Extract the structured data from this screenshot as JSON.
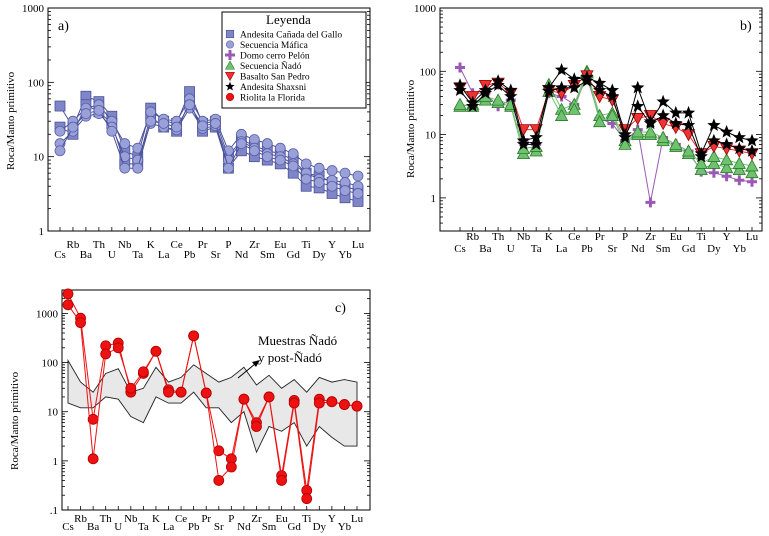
{
  "figure": {
    "ylabel": "Roca/Manto primitivo"
  },
  "legend": {
    "title": "Leyenda",
    "entries": [
      {
        "name": "Andesita Cañada del Gallo",
        "marker": "square",
        "color": "#7f86c8"
      },
      {
        "name": "Secuencia Máfica",
        "marker": "circle",
        "color": "#9aa0d8"
      },
      {
        "name": "Domo cerro Pelón",
        "marker": "plus",
        "color": "#9b59b6"
      },
      {
        "name": "Secuencia Ñadó",
        "marker": "triangle-up",
        "color": "#6fc36f"
      },
      {
        "name": "Basalto San Pedro",
        "marker": "triangle-down",
        "color": "#ee3333"
      },
      {
        "name": "Andesita Shaxsni",
        "marker": "star",
        "color": "#000000"
      },
      {
        "name": "Riolita la Florida",
        "marker": "circle",
        "color": "#ee1111"
      }
    ]
  },
  "chart_data": [
    {
      "panel": "a)",
      "type": "line",
      "yscale": "log",
      "ylim": [
        1,
        1000
      ],
      "yticks": [
        "1",
        "10",
        "100",
        "1000"
      ],
      "ylabel": "Roca/Manto primitivo",
      "categories": [
        "Cs",
        "Rb",
        "Ba",
        "Th",
        "U",
        "Nb",
        "Ta",
        "K",
        "La",
        "Ce",
        "Pb",
        "Pr",
        "Sr",
        "P",
        "Nd",
        "Zr",
        "Sm",
        "Eu",
        "Gd",
        "Ti",
        "Dy",
        "Y",
        "Yb",
        "Lu"
      ],
      "series": [
        {
          "name": "Andesita Cañada del Gallo",
          "marker": "square",
          "color": "#7f86c8",
          "values": [
            48,
            25,
            65,
            55,
            35,
            12,
            10,
            45,
            30,
            28,
            75,
            28,
            30,
            10,
            17,
            14,
            12,
            11,
            9,
            6,
            5.5,
            4.5,
            4,
            3.5
          ]
        },
        {
          "name": "Andesita Cañada del Gallo",
          "marker": "square",
          "color": "#7f86c8",
          "values": [
            25,
            20,
            50,
            40,
            28,
            8,
            8,
            35,
            25,
            22,
            55,
            22,
            25,
            7,
            12,
            10,
            9,
            8,
            6,
            4,
            3.8,
            3.2,
            2.8,
            2.5
          ]
        },
        {
          "name": "Secuencia Máfica",
          "marker": "circle",
          "color": "#9aa0d8",
          "values": [
            22,
            30,
            45,
            50,
            30,
            15,
            13,
            40,
            32,
            30,
            60,
            30,
            32,
            12,
            20,
            17,
            15,
            13,
            11,
            8,
            7,
            6.5,
            6,
            5.5
          ]
        },
        {
          "name": "Secuencia Máfica",
          "marker": "circle",
          "color": "#9aa0d8",
          "values": [
            15,
            22,
            35,
            38,
            25,
            10,
            9,
            28,
            25,
            23,
            45,
            24,
            26,
            9,
            16,
            13,
            11,
            10,
            8,
            6,
            5,
            4.8,
            4.5,
            4
          ]
        },
        {
          "name": "Secuencia Máfica",
          "marker": "circle",
          "color": "#9aa0d8",
          "values": [
            12,
            25,
            38,
            42,
            22,
            7,
            7,
            30,
            28,
            25,
            50,
            26,
            28,
            7,
            15,
            12,
            10,
            9,
            7.5,
            5,
            4.5,
            4,
            3.5,
            3.2
          ]
        }
      ]
    },
    {
      "panel": "b)",
      "type": "line",
      "yscale": "log",
      "ylim": [
        0.3,
        1000
      ],
      "yticks": [
        "1",
        "10",
        "100",
        "1000"
      ],
      "ylabel": "Roca/Manto primitivo",
      "categories": [
        "Cs",
        "Rb",
        "Ba",
        "Th",
        "U",
        "Nb",
        "Ta",
        "K",
        "La",
        "Ce",
        "Pb",
        "Pr",
        "Sr",
        "P",
        "Nd",
        "Zr",
        "Sm",
        "Eu",
        "Gd",
        "Ti",
        "Dy",
        "Y",
        "Yb",
        "Lu"
      ],
      "series": [
        {
          "name": "Domo cerro Pelón",
          "marker": "plus",
          "color": "#9b59b6",
          "values": [
            115,
            45,
            45,
            28,
            35,
            8,
            7,
            45,
            40,
            30,
            80,
            18,
            15,
            8,
            12,
            0.85,
            9,
            7,
            5.5,
            2.6,
            2.5,
            2.2,
            1.9,
            1.8
          ]
        },
        {
          "name": "Secuencia Ñadó",
          "marker": "triangle-up",
          "color": "#6fc36f",
          "values": [
            28,
            30,
            35,
            32,
            28,
            5,
            5.5,
            62,
            25,
            30,
            100,
            20,
            22,
            8,
            10,
            10,
            8,
            6.5,
            5,
            2.8,
            3.5,
            3,
            2.8,
            2.5
          ]
        },
        {
          "name": "Secuencia Ñadó",
          "marker": "triangle-up",
          "color": "#6fc36f",
          "values": [
            30,
            28,
            40,
            35,
            30,
            6,
            6.5,
            48,
            20,
            25,
            95,
            16,
            20,
            7,
            11,
            11,
            9,
            7,
            5.5,
            3.5,
            4.5,
            4,
            3.5,
            3.2
          ]
        },
        {
          "name": "Basalto San Pedro",
          "marker": "triangle-down",
          "color": "#ee3333",
          "values": [
            55,
            40,
            60,
            65,
            45,
            12,
            12,
            50,
            45,
            60,
            85,
            40,
            35,
            12,
            18,
            20,
            15,
            13,
            10,
            5,
            6.5,
            6,
            5.5,
            5
          ]
        },
        {
          "name": "Andesita Shaxsni",
          "marker": "star",
          "color": "#000000",
          "values": [
            60,
            32,
            50,
            70,
            50,
            8,
            9,
            55,
            105,
            75,
            80,
            65,
            50,
            10,
            55,
            16,
            33,
            22,
            22,
            5,
            14,
            11,
            9,
            8
          ]
        },
        {
          "name": "Andesita Shaxsni",
          "marker": "star",
          "color": "#000000",
          "values": [
            50,
            28,
            45,
            60,
            40,
            7,
            7,
            48,
            55,
            55,
            70,
            50,
            40,
            9,
            28,
            15,
            20,
            15,
            14,
            4.5,
            8,
            7,
            6,
            5.5
          ]
        }
      ]
    },
    {
      "panel": "c)",
      "type": "line",
      "yscale": "log",
      "ylim": [
        0.1,
        3000
      ],
      "yticks": [
        ".1",
        "1",
        "10",
        "100",
        "1000"
      ],
      "ylabel": "Roca/Manto primitivo",
      "categories": [
        "Cs",
        "Rb",
        "Ba",
        "Th",
        "U",
        "Nb",
        "Ta",
        "K",
        "La",
        "Ce",
        "Pb",
        "Pr",
        "Sr",
        "P",
        "Nd",
        "Zr",
        "Sm",
        "Eu",
        "Gd",
        "Ti",
        "Dy",
        "Y",
        "Yb",
        "Lu"
      ],
      "annotation": "Muestras Ñadó\ny post-Ñadó",
      "series": [
        {
          "name": "Riolita la Florida",
          "marker": "circle",
          "color": "#ee1111",
          "values": [
            2500,
            800,
            7,
            220,
            250,
            25,
            60,
            170,
            28,
            25,
            350,
            24,
            1.6,
            1.1,
            18,
            6,
            20,
            0.5,
            17,
            0.25,
            18,
            16,
            14,
            13
          ]
        },
        {
          "name": "Riolita la Florida",
          "marker": "circle",
          "color": "#ee1111",
          "values": [
            1500,
            650,
            1.1,
            150,
            200,
            30,
            65,
            170,
            25,
            25,
            350,
            24,
            0.4,
            0.75,
            18,
            5,
            20,
            0.4,
            15,
            0.17,
            15,
            16,
            14,
            13
          ]
        }
      ],
      "envelope": {
        "upper": [
          110,
          40,
          25,
          60,
          75,
          25,
          30,
          80,
          40,
          50,
          90,
          60,
          40,
          50,
          80,
          35,
          55,
          30,
          45,
          25,
          50,
          40,
          45,
          40
        ],
        "lower": [
          15,
          12,
          12,
          20,
          18,
          8,
          6,
          20,
          15,
          15,
          25,
          12,
          12,
          6,
          10,
          1.5,
          5,
          4,
          6,
          2,
          5,
          3,
          2,
          2
        ]
      }
    }
  ]
}
